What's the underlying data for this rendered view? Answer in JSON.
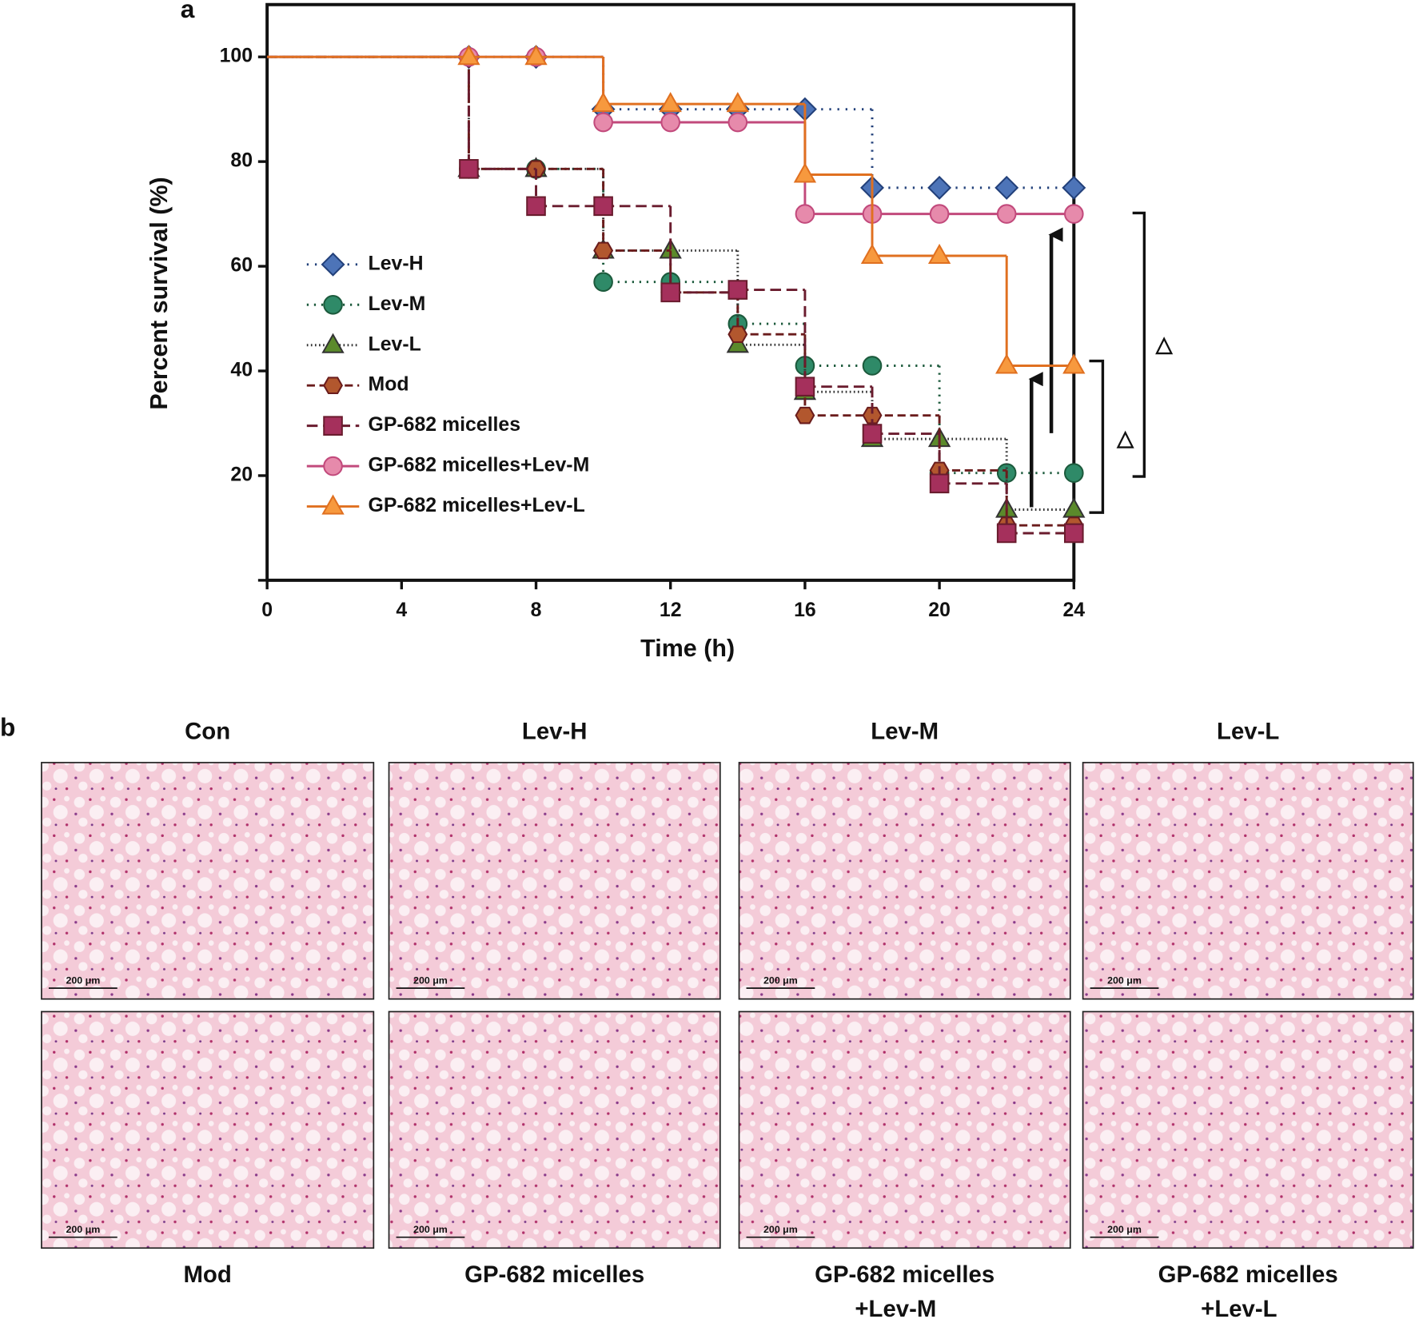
{
  "panel_labels": [
    "a",
    "b"
  ],
  "chart_data": {
    "type": "step-line",
    "xlabel": "Time (h)",
    "ylabel": "Percent survival (%)",
    "x": [
      0,
      6,
      8,
      10,
      12,
      14,
      16,
      18,
      20,
      22,
      24
    ],
    "xlim": [
      0,
      24
    ],
    "xticks": [
      0,
      4,
      8,
      12,
      16,
      20,
      24
    ],
    "ylim": [
      0,
      110
    ],
    "yticks": [
      20,
      40,
      60,
      80,
      100
    ],
    "series": [
      {
        "name": "Lev-H",
        "color": "#22407a",
        "marker_color": "#4d74b8",
        "marker": "diamond",
        "dash": "2 7",
        "values": [
          100,
          100,
          100,
          90,
          90,
          90,
          90,
          75,
          75,
          75,
          75
        ]
      },
      {
        "name": "Lev-M",
        "color": "#1c5a3c",
        "marker_color": "#2f8a68",
        "marker": "circle",
        "dash": "2 6",
        "values": [
          100,
          78.6,
          78.6,
          57,
          57,
          49,
          41,
          41,
          20.5,
          20.5,
          20.5
        ]
      },
      {
        "name": "Lev-L",
        "color": "#333333",
        "marker_color": "#5b8a2b",
        "marker": "triangle",
        "dash": "1.5 3",
        "values": [
          100,
          78.6,
          78.6,
          63,
          63,
          45,
          36,
          27,
          27,
          13.5,
          13.5
        ]
      },
      {
        "name": "Mod",
        "color": "#6a1c1c",
        "marker_color": "#b2572e",
        "marker": "hexagon",
        "dash": "9 5",
        "values": [
          100,
          78.6,
          78.6,
          63,
          55,
          47,
          31.5,
          31.5,
          21,
          10.5,
          10.5
        ]
      },
      {
        "name": "GP-682 micelles",
        "color": "#6a1c2e",
        "marker_color": "#a5305c",
        "marker": "square",
        "dash": "12 6",
        "values": [
          100,
          78.6,
          71.5,
          71.5,
          55,
          55.5,
          37,
          28,
          18.5,
          9,
          9
        ]
      },
      {
        "name": "GP-682 micelles+Lev-M",
        "color": "#c24a7c",
        "marker_color": "#e68aab",
        "marker": "circle",
        "dash": "",
        "values": [
          100,
          100,
          100,
          87.5,
          87.5,
          87.5,
          70,
          70,
          70,
          70,
          70
        ]
      },
      {
        "name": "GP-682 micelles+Lev-L",
        "color": "#e07020",
        "marker_color": "#f7993e",
        "marker": "triangle",
        "dash": "",
        "values": [
          100,
          100,
          100,
          91,
          91,
          91,
          77.5,
          62,
          62,
          41,
          41
        ]
      }
    ],
    "annotations": [
      "△",
      "△"
    ]
  },
  "histology": {
    "top_labels": [
      "Con",
      "Lev-H",
      "Lev-M",
      "Lev-L"
    ],
    "bottom_labels": [
      [
        "Mod"
      ],
      [
        "GP-682 micelles"
      ],
      [
        "GP-682 micelles",
        "+Lev-M"
      ],
      [
        "GP-682 micelles",
        "+Lev-L"
      ]
    ],
    "scale_bar": "200 μm"
  }
}
